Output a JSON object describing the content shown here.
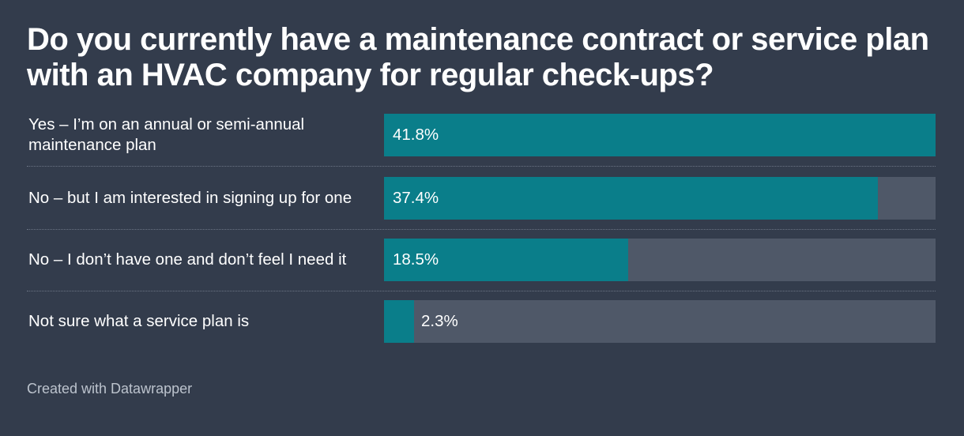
{
  "title": "Do you currently have a maintenance contract or service plan with an HVAC company for regular check-ups?",
  "footer": "Created with Datawrapper",
  "colors": {
    "background": "#333c4c",
    "bar": "#0a7e8a",
    "track": "#4f5868"
  },
  "chart_data": {
    "type": "bar",
    "orientation": "horizontal",
    "categories": [
      "Yes – I’m on an annual or semi-annual maintenance plan",
      "No – but I am interested in signing up for one",
      "No – I don’t have one and don’t feel I need it",
      "Not sure what a service plan is"
    ],
    "values": [
      41.8,
      37.4,
      18.5,
      2.3
    ],
    "value_labels": [
      "41.8%",
      "37.4%",
      "18.5%",
      "2.3%"
    ],
    "xlim": [
      0,
      41.8
    ]
  }
}
